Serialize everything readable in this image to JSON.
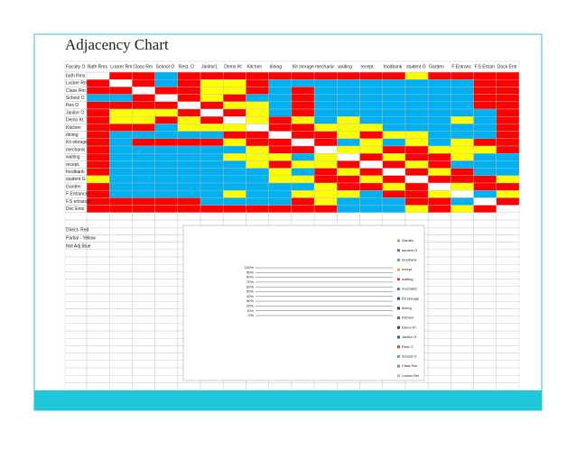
{
  "title": "Adjacency Chart",
  "table": {
    "corner": "Faculty O",
    "columns": [
      "Bath Rms",
      "Locker Rm",
      "Class Rm",
      "School O",
      "Rest. O",
      "Janitor1.",
      "Demo Kt",
      "Kitchen",
      "dining",
      "Kit storage",
      "mechanic",
      "waiting",
      "recept.",
      "foodbank",
      "student G",
      "Garden",
      "F Entranc",
      "F.S Ertran",
      "Dock Entr"
    ],
    "rows": [
      "bath Rms",
      "Locker Rm",
      "Class Rm",
      "School O",
      "Res O",
      "Janitor O",
      "Demo Kt",
      "Kitchen",
      "dining",
      "Kit storage",
      "mechanic",
      "waiting",
      "recept.",
      "foodbank",
      "student G",
      "Garden",
      "F Entrance",
      "F.S ertrance",
      "Doc Ents"
    ],
    "cell_colors": [
      [
        "white",
        "red",
        "red",
        "#00b0f0",
        "red",
        "red",
        "red",
        "red",
        "red",
        "red",
        "red",
        "red",
        "red",
        "red",
        "yellow",
        "red",
        "red",
        "red",
        "red"
      ],
      [
        "red",
        "white",
        "red",
        "#00b0f0",
        "red",
        "yellow",
        "yellow",
        "red",
        "#00b0f0",
        "#00b0f0",
        "#00b0f0",
        "#00b0f0",
        "#00b0f0",
        "#00b0f0",
        "#00b0f0",
        "#00b0f0",
        "#00b0f0",
        "red",
        "red"
      ],
      [
        "red",
        "red",
        "white",
        "red",
        "red",
        "yellow",
        "yellow",
        "red",
        "#00b0f0",
        "red",
        "#00b0f0",
        "#00b0f0",
        "#00b0f0",
        "#00b0f0",
        "#00b0f0",
        "#00b0f0",
        "#00b0f0",
        "red",
        "red"
      ],
      [
        "#00b0f0",
        "#00b0f0",
        "red",
        "white",
        "red",
        "yellow",
        "red",
        "#00b0f0",
        "#00b0f0",
        "red",
        "#00b0f0",
        "#00b0f0",
        "#00b0f0",
        "#00b0f0",
        "#00b0f0",
        "#00b0f0",
        "#00b0f0",
        "red",
        "red"
      ],
      [
        "red",
        "red",
        "red",
        "red",
        "white",
        "red",
        "yellow",
        "yellow",
        "#00b0f0",
        "red",
        "#00b0f0",
        "#00b0f0",
        "#00b0f0",
        "#00b0f0",
        "#00b0f0",
        "#00b0f0",
        "#00b0f0",
        "red",
        "red"
      ],
      [
        "red",
        "yellow",
        "yellow",
        "yellow",
        "red",
        "white",
        "red",
        "yellow",
        "#00b0f0",
        "red",
        "#00b0f0",
        "#00b0f0",
        "#00b0f0",
        "#00b0f0",
        "#00b0f0",
        "#00b0f0",
        "#00b0f0",
        "#00b0f0",
        "red"
      ],
      [
        "red",
        "yellow",
        "yellow",
        "red",
        "yellow",
        "red",
        "white",
        "yellow",
        "red",
        "yellow",
        "#00b0f0",
        "yellow",
        "#00b0f0",
        "#00b0f0",
        "#00b0f0",
        "#00b0f0",
        "yellow",
        "#00b0f0",
        "red"
      ],
      [
        "red",
        "red",
        "red",
        "#00b0f0",
        "yellow",
        "yellow",
        "yellow",
        "white",
        "red",
        "red",
        "yellow",
        "yellow",
        "yellow",
        "#00b0f0",
        "#00b0f0",
        "#00b0f0",
        "#00b0f0",
        "#00b0f0",
        "red"
      ],
      [
        "red",
        "#00b0f0",
        "#00b0f0",
        "#00b0f0",
        "#00b0f0",
        "#00b0f0",
        "red",
        "red",
        "white",
        "red",
        "red",
        "yellow",
        "red",
        "yellow",
        "yellow",
        "#00b0f0",
        "#00b0f0",
        "#00b0f0",
        "red"
      ],
      [
        "red",
        "#00b0f0",
        "red",
        "red",
        "red",
        "red",
        "yellow",
        "red",
        "red",
        "white",
        "red",
        "#00b0f0",
        "yellow",
        "#00b0f0",
        "yellow",
        "#00b0f0",
        "yellow",
        "red",
        "red"
      ],
      [
        "red",
        "#00b0f0",
        "#00b0f0",
        "#00b0f0",
        "#00b0f0",
        "#00b0f0",
        "#00b0f0",
        "yellow",
        "red",
        "red",
        "white",
        "yellow",
        "yellow",
        "red",
        "red",
        "yellow",
        "yellow",
        "yellow",
        "red"
      ],
      [
        "red",
        "#00b0f0",
        "#00b0f0",
        "#00b0f0",
        "#00b0f0",
        "#00b0f0",
        "yellow",
        "yellow",
        "yellow",
        "#00b0f0",
        "yellow",
        "white",
        "red",
        "yellow",
        "red",
        "red",
        "yellow",
        "#00b0f0",
        "#00b0f0"
      ],
      [
        "red",
        "#00b0f0",
        "#00b0f0",
        "#00b0f0",
        "#00b0f0",
        "#00b0f0",
        "#00b0f0",
        "yellow",
        "red",
        "yellow",
        "yellow",
        "red",
        "white",
        "red",
        "yellow",
        "red",
        "#00b0f0",
        "#00b0f0",
        "#00b0f0"
      ],
      [
        "red",
        "#00b0f0",
        "#00b0f0",
        "#00b0f0",
        "#00b0f0",
        "#00b0f0",
        "#00b0f0",
        "#00b0f0",
        "yellow",
        "#00b0f0",
        "red",
        "yellow",
        "red",
        "white",
        "red",
        "yellow",
        "red",
        "#00b0f0",
        "#00b0f0"
      ],
      [
        "yellow",
        "#00b0f0",
        "#00b0f0",
        "#00b0f0",
        "#00b0f0",
        "#00b0f0",
        "#00b0f0",
        "#00b0f0",
        "yellow",
        "yellow",
        "red",
        "red",
        "yellow",
        "red",
        "white",
        "red",
        "red",
        "red",
        "yellow"
      ],
      [
        "red",
        "#00b0f0",
        "#00b0f0",
        "#00b0f0",
        "#00b0f0",
        "#00b0f0",
        "#00b0f0",
        "#00b0f0",
        "#00b0f0",
        "#00b0f0",
        "yellow",
        "red",
        "red",
        "yellow",
        "red",
        "white",
        "yellow",
        "red",
        "red"
      ],
      [
        "red",
        "#00b0f0",
        "#00b0f0",
        "#00b0f0",
        "#00b0f0",
        "#00b0f0",
        "yellow",
        "#00b0f0",
        "#00b0f0",
        "yellow",
        "yellow",
        "yellow",
        "#00b0f0",
        "red",
        "red",
        "yellow",
        "white",
        "#00b0f0",
        "yellow"
      ],
      [
        "red",
        "red",
        "red",
        "red",
        "red",
        "#00b0f0",
        "#00b0f0",
        "#00b0f0",
        "#00b0f0",
        "red",
        "yellow",
        "#00b0f0",
        "#00b0f0",
        "#00b0f0",
        "red",
        "red",
        "#00b0f0",
        "white",
        "red"
      ],
      [
        "red",
        "red",
        "red",
        "red",
        "red",
        "red",
        "red",
        "red",
        "red",
        "red",
        "red",
        "#00b0f0",
        "#00b0f0",
        "#00b0f0",
        "yellow",
        "red",
        "yellow",
        "red",
        "white"
      ]
    ]
  },
  "notes": [
    "Direct- Red",
    "Partial - Yellow",
    "Not Adj Blue"
  ],
  "embedded_chart": {
    "yticks": [
      {
        "value": 0,
        "label": "0%"
      },
      {
        "value": 10,
        "label": "10%"
      },
      {
        "value": 20,
        "label": "20%"
      },
      {
        "value": 30,
        "label": "30%"
      },
      {
        "value": 40,
        "label": "40%"
      },
      {
        "value": 50,
        "label": "50%"
      },
      {
        "value": 60,
        "label": "60%"
      },
      {
        "value": 70,
        "label": "70%"
      },
      {
        "value": 80,
        "label": "80%"
      },
      {
        "value": 90,
        "label": "90%"
      },
      {
        "value": 100,
        "label": "100%"
      }
    ],
    "ylim": [
      0,
      100
    ],
    "legend": [
      "Garden",
      "student G",
      "foodbank",
      "recept.",
      "waiting",
      "mechanic",
      "Kit storage",
      "dining",
      "Kitchen",
      "Demo Kt",
      "Janitor O",
      "Rest O",
      "School O",
      "Class Rm",
      "Locker Rm"
    ]
  }
}
